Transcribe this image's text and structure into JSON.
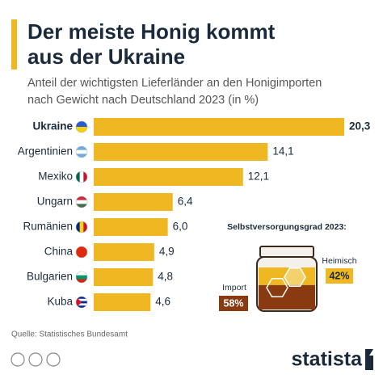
{
  "chart_data": [
    {
      "type": "hbar",
      "title": [
        "Der meiste Honig kommt",
        "aus der Ukraine"
      ],
      "subtitle": [
        "Anteil der wichtigsten Lieferländer an den Honigimporten",
        "nach Gewicht nach Deutschland 2023 (in %)"
      ],
      "categories": [
        "Ukraine",
        "Argentinien",
        "Mexiko",
        "Ungarn",
        "Rumänien",
        "China",
        "Bulgarien",
        "Kuba"
      ],
      "values": [
        20.3,
        14.1,
        12.1,
        6.4,
        6.0,
        4.9,
        4.8,
        4.6
      ],
      "value_labels": [
        "20,3",
        "14,1",
        "12,1",
        "6,4",
        "6,0",
        "4,9",
        "4,8",
        "4,6"
      ],
      "color": "#efb823",
      "source": "Quelle: Statistisches Bundesamt",
      "brand": "statista"
    },
    {
      "type": "jar",
      "title": "Selbstversorgungsgrad 2023:",
      "categories": [
        "Import",
        "Heimisch"
      ],
      "values": [
        58,
        42
      ],
      "value_labels": [
        "58%",
        "42%"
      ],
      "colors": [
        "#8a3a10",
        "#efb823"
      ]
    }
  ]
}
